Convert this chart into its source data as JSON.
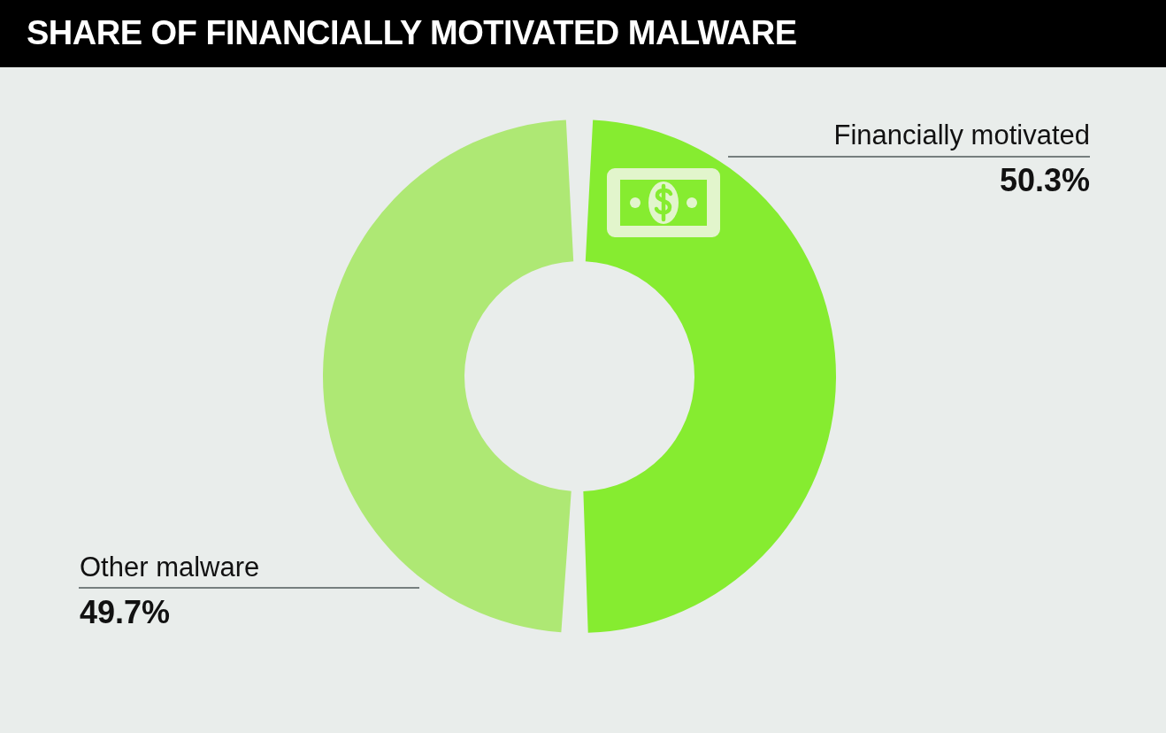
{
  "chart_data": {
    "type": "donut",
    "title": "SHARE OF FINANCIALLY MOTIVATED MALWARE",
    "categories": [
      "Financially motivated",
      "Other malware"
    ],
    "values": [
      50.3,
      49.7
    ],
    "value_labels": [
      "50.3%",
      "49.7%"
    ],
    "colors": [
      "#86ec30",
      "#aee874"
    ]
  }
}
